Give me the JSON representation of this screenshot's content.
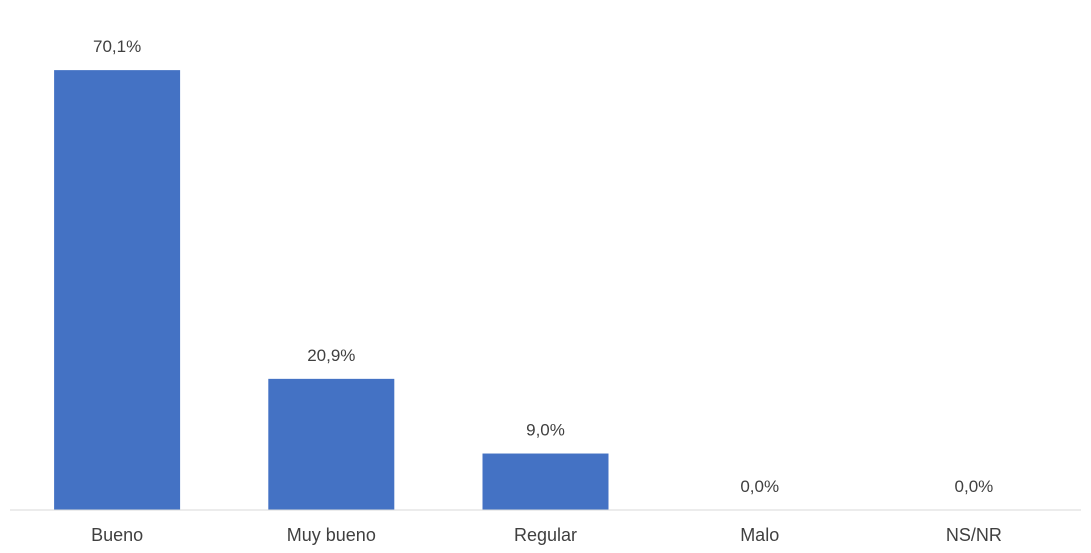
{
  "chart_data": {
    "type": "bar",
    "title": "",
    "xlabel": "",
    "ylabel": "",
    "categories": [
      "Bueno",
      "Muy bueno",
      "Regular",
      "Malo",
      "NS/NR"
    ],
    "values": [
      70.1,
      20.9,
      9.0,
      0.0,
      0.0
    ],
    "data_labels": [
      "70,1%",
      "20,9%",
      "9,0%",
      "0,0%",
      "0,0%"
    ],
    "ylim": [
      0,
      80
    ],
    "grid": false,
    "legend": "none",
    "bar_color": "#4472C4",
    "axis_color": "#D9D9D9",
    "text_color": "#404040"
  }
}
